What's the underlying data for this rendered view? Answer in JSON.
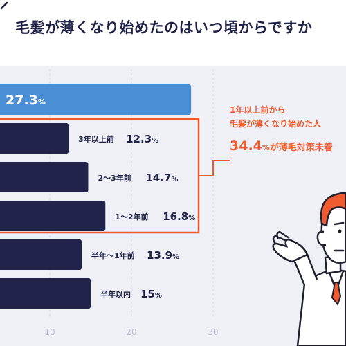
{
  "title": "毛髪が薄くなり始めたのはいつ頃からですか",
  "chart_data": {
    "type": "bar",
    "orientation": "horizontal",
    "categories": [
      "",
      "3年以上前",
      "2〜3年前",
      "1〜2年前",
      "半年〜1年前",
      "半年以内"
    ],
    "values": [
      27.3,
      12.3,
      14.7,
      16.8,
      13.9,
      15
    ],
    "value_labels": [
      "27.3",
      "12.3",
      "14.7",
      "16.8",
      "13.9",
      "15"
    ],
    "unit": "%",
    "xticks": [
      "10",
      "20",
      "30"
    ],
    "xlim": [
      0,
      30
    ],
    "grid": true,
    "highlight_color": "#4a8fd6",
    "bar_color": "#22234a",
    "accent_color": "#ef5a2f"
  },
  "annotation": {
    "line1": "1年以上前から",
    "line2": "毛髪が薄くなり始めた人",
    "line3_value": "34.4",
    "line3_unit": "%",
    "line3_text": "が薄毛対策未着"
  }
}
